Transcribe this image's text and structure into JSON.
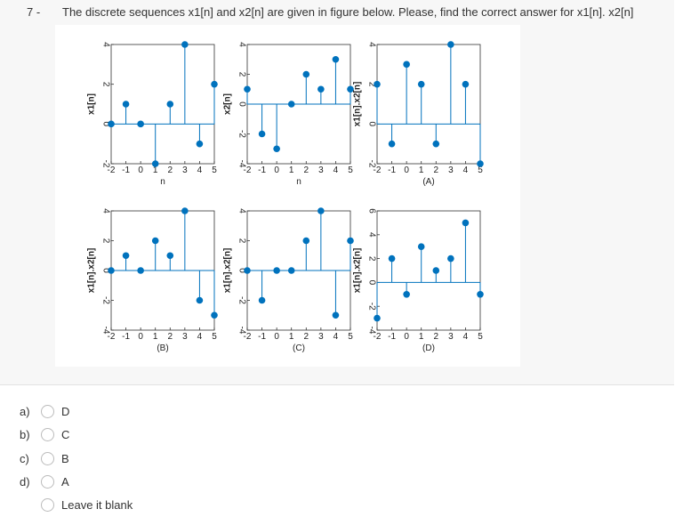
{
  "question": {
    "number": "7 -",
    "text": "The discrete sequences x1[n] and x2[n] are given in figure below. Please, find the correct answer   for x1[n]. x2[n]"
  },
  "chart_data": [
    {
      "type": "stem",
      "ylabel": "x1[n]",
      "xlabel": "n",
      "x": [
        -2,
        -1,
        0,
        1,
        2,
        3,
        4,
        5
      ],
      "values": [
        0,
        1,
        0,
        -2,
        1,
        4,
        -1,
        2
      ],
      "xlim": [
        -2,
        5
      ],
      "ylim": [
        -2,
        4
      ],
      "xticks": [
        -2,
        -1,
        0,
        1,
        2,
        3,
        4,
        5
      ],
      "yticks": [
        -2,
        0,
        2,
        4
      ],
      "color": "#0072bd"
    },
    {
      "type": "stem",
      "ylabel": "x2[n]",
      "xlabel": "n",
      "x": [
        -2,
        -1,
        0,
        1,
        2,
        3,
        4,
        5
      ],
      "values": [
        1,
        -2,
        -3,
        0,
        2,
        1,
        3,
        1
      ],
      "xlim": [
        -2,
        5
      ],
      "ylim": [
        -4,
        4
      ],
      "xticks": [
        -2,
        -1,
        0,
        1,
        2,
        3,
        4,
        5
      ],
      "yticks": [
        -4,
        -2,
        0,
        2,
        4
      ],
      "color": "#0072bd"
    },
    {
      "type": "stem",
      "ylabel": "x1[n].x2[n]",
      "xlabel": "(A)",
      "x": [
        -2,
        -1,
        0,
        1,
        2,
        3,
        4,
        5
      ],
      "values": [
        2,
        -1,
        3,
        2,
        -1,
        4,
        2,
        -2
      ],
      "xlim": [
        -2,
        5
      ],
      "ylim": [
        -2,
        4
      ],
      "xticks": [
        -2,
        -1,
        0,
        1,
        2,
        3,
        4,
        5
      ],
      "yticks": [
        -2,
        0,
        2,
        4
      ],
      "color": "#0072bd"
    },
    {
      "type": "stem",
      "ylabel": "x1[n].x2[n]",
      "xlabel": "(B)",
      "x": [
        -2,
        -1,
        0,
        1,
        2,
        3,
        4,
        5
      ],
      "values": [
        0,
        1,
        0,
        2,
        1,
        4,
        -2,
        -3
      ],
      "xlim": [
        -2,
        5
      ],
      "ylim": [
        -4,
        4
      ],
      "xticks": [
        -2,
        -1,
        0,
        1,
        2,
        3,
        4,
        5
      ],
      "yticks": [
        -4,
        -2,
        0,
        2,
        4
      ],
      "color": "#0072bd"
    },
    {
      "type": "stem",
      "ylabel": "x1[n].x2[n]",
      "xlabel": "(C)",
      "x": [
        -2,
        -1,
        0,
        1,
        2,
        3,
        4,
        5
      ],
      "values": [
        0,
        -2,
        0,
        0,
        2,
        4,
        -3,
        2
      ],
      "xlim": [
        -2,
        5
      ],
      "ylim": [
        -4,
        4
      ],
      "xticks": [
        -2,
        -1,
        0,
        1,
        2,
        3,
        4,
        5
      ],
      "yticks": [
        -4,
        -2,
        0,
        2,
        4
      ],
      "color": "#0072bd"
    },
    {
      "type": "stem",
      "ylabel": "x1[n].x2[n]",
      "xlabel": "(D)",
      "x": [
        -2,
        -1,
        0,
        1,
        2,
        3,
        4,
        5
      ],
      "values": [
        -3,
        2,
        -1,
        3,
        1,
        2,
        5,
        -1
      ],
      "xlim": [
        -2,
        5
      ],
      "ylim": [
        -4,
        6
      ],
      "xticks": [
        -2,
        -1,
        0,
        1,
        2,
        3,
        4,
        5
      ],
      "yticks": [
        -4,
        -2,
        0,
        2,
        4,
        6
      ],
      "color": "#0072bd"
    }
  ],
  "options": [
    {
      "letter": "a)",
      "label": "D"
    },
    {
      "letter": "b)",
      "label": "C"
    },
    {
      "letter": "c)",
      "label": "B"
    },
    {
      "letter": "d)",
      "label": "A"
    },
    {
      "label": "Leave it blank"
    }
  ]
}
